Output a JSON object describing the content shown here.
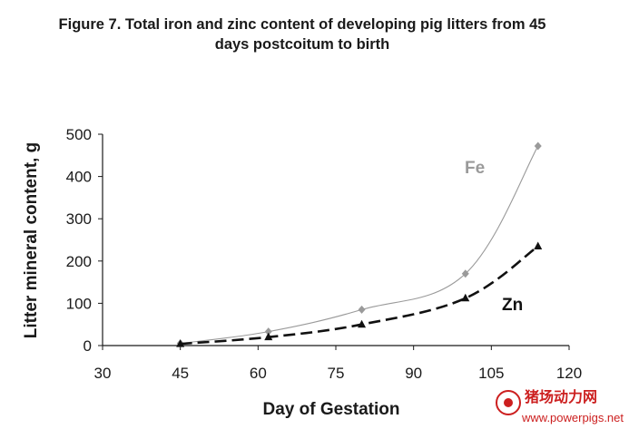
{
  "chart_data": {
    "type": "line",
    "title": [
      "Figure 7.  Total iron and zinc content of developing pig litters from 45",
      "days postcoitum to birth"
    ],
    "xlabel": "Day of Gestation",
    "ylabel": "Litter mineral content, g",
    "xlim": [
      30,
      120
    ],
    "ylim": [
      0,
      500
    ],
    "xticks": [
      30,
      45,
      60,
      75,
      90,
      105,
      120
    ],
    "yticks": [
      0,
      100,
      200,
      300,
      400,
      500
    ],
    "grid": false,
    "series": [
      {
        "name": "Fe",
        "color": "#9a9a9a",
        "marker": "diamond",
        "line_style": "solid-thin",
        "x": [
          45,
          62,
          80,
          100,
          114
        ],
        "y": [
          5,
          33,
          85,
          170,
          472
        ]
      },
      {
        "name": "Zn",
        "color": "#111111",
        "marker": "triangle",
        "line_style": "dashed",
        "x": [
          45,
          62,
          80,
          100,
          114
        ],
        "y": [
          4,
          20,
          50,
          112,
          235
        ]
      }
    ]
  },
  "watermark": {
    "cn": "猪场动力网",
    "url": "www.powerpigs.net",
    "color": "#cc1f1f"
  }
}
